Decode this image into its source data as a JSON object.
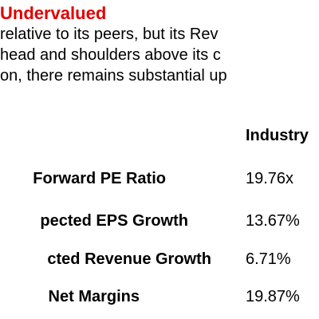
{
  "heading": {
    "text": "Undervalued",
    "color": "#e00000"
  },
  "paragraph": {
    "lines": [
      "relative to its peers, but its Rev",
      "head and shoulders above its c",
      "on, there remains substantial up"
    ]
  },
  "table": {
    "column_header": "Industry",
    "rows": [
      {
        "label": "Forward PE Ratio",
        "value": "19.76x"
      },
      {
        "label": "pected EPS Growth",
        "value": "13.67%"
      },
      {
        "label": "cted Revenue Growth",
        "value": "6.71%"
      },
      {
        "label": "Net Margins",
        "value": "19.87%"
      }
    ]
  }
}
